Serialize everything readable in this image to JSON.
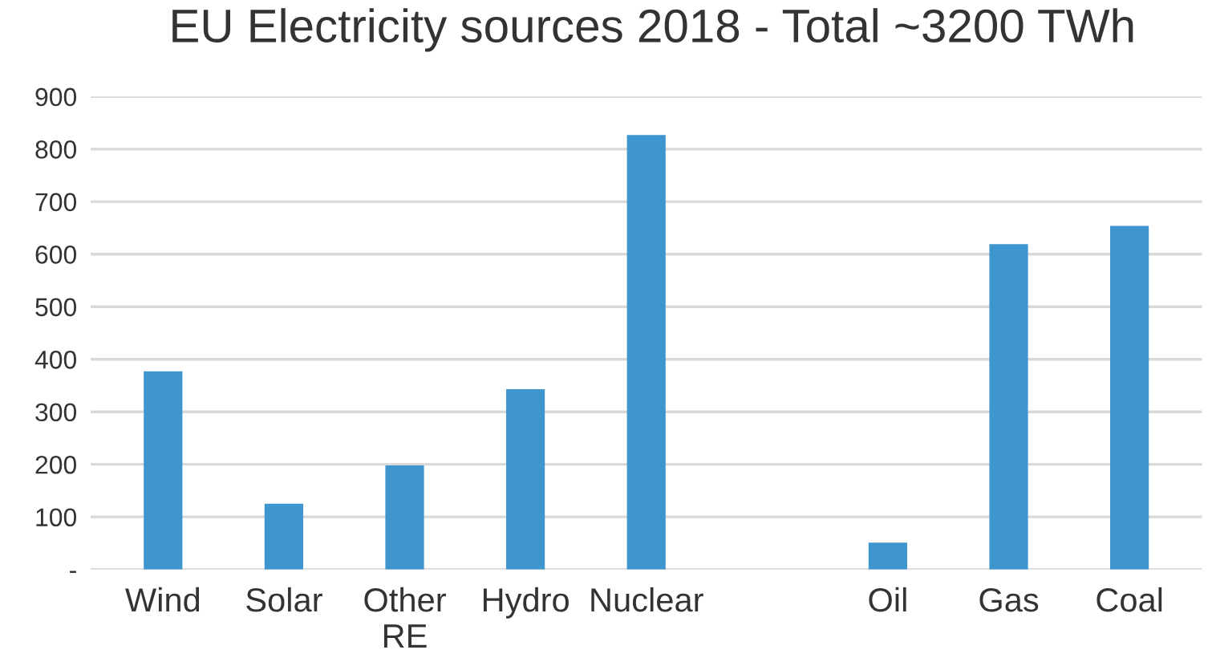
{
  "chart_data": {
    "type": "bar",
    "title": "EU Electricity sources 2018 - Total ~3200 TWh",
    "categories": [
      "Wind",
      "Solar",
      "Other\nRE",
      "Hydro",
      "Nuclear",
      null,
      "Oil",
      "Gas",
      "Coal"
    ],
    "values": [
      377,
      125,
      198,
      343,
      827,
      null,
      51,
      619,
      654
    ],
    "color": "#3f96cf",
    "ylim": [
      0,
      900
    ],
    "yticks": [
      {
        "value": 0,
        "label": "-"
      },
      100,
      200,
      300,
      400,
      500,
      600,
      700,
      800,
      900
    ],
    "grid": "y",
    "legend": false
  }
}
